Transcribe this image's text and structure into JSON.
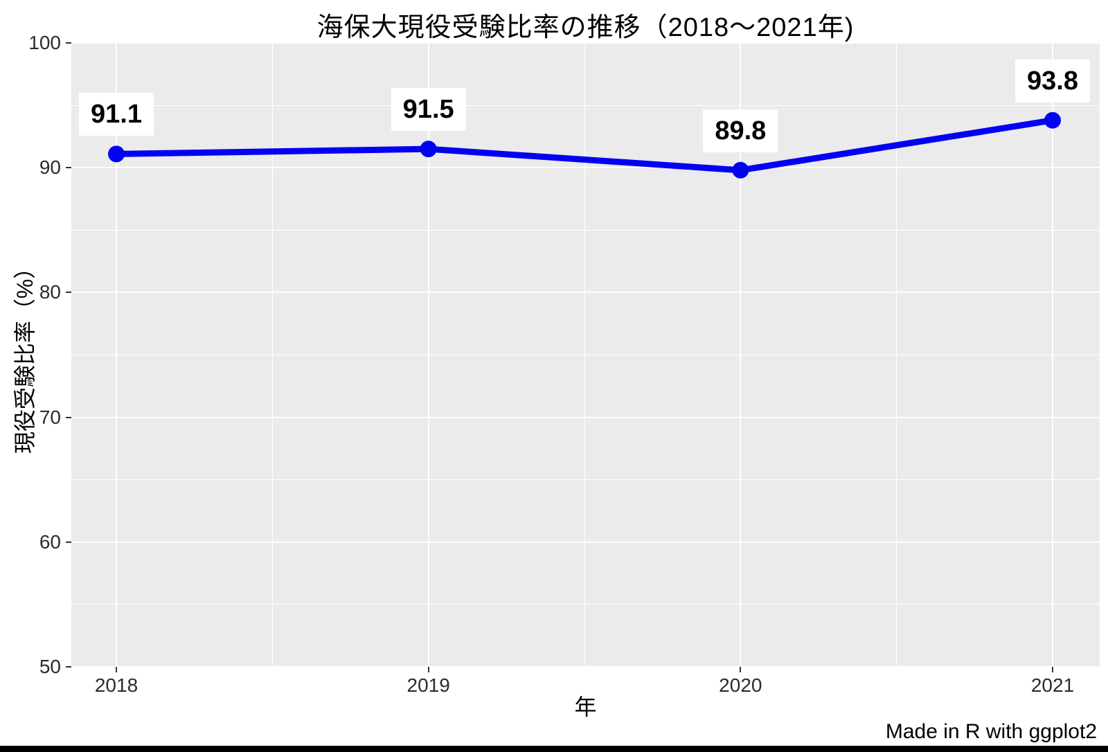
{
  "title": "海保大現役受験比率の推移（2018〜2021年)",
  "caption": "Made in R with ggplot2",
  "chart_data": {
    "type": "line",
    "title": "海保大現役受験比率の推移（2018〜2021年)",
    "xlabel": "年",
    "ylabel": "現役受験比率（%）",
    "x": [
      2018,
      2019,
      2020,
      2021
    ],
    "series": [
      {
        "name": "現役受験比率",
        "values": [
          91.1,
          91.5,
          89.8,
          93.8
        ]
      }
    ],
    "point_labels": [
      "91.1",
      "91.5",
      "89.8",
      "93.8"
    ],
    "xticks": [
      "2018",
      "2019",
      "2020",
      "2021"
    ],
    "yticks": [
      50,
      60,
      70,
      80,
      90,
      100
    ],
    "yticks_minor": [
      55,
      65,
      75,
      85,
      95
    ],
    "xticks_minor": [
      2018.5,
      2019.5,
      2020.5
    ],
    "ylim": [
      50,
      100
    ],
    "grid": "white major and minor gridlines on gray panel",
    "legend": "none",
    "caption": "Made in R with ggplot2",
    "colors": {
      "line": "#0202f2",
      "point": "#0202f2",
      "panel_bg": "#ebebeb",
      "grid": "#ffffff",
      "label_bg": "#ffffff",
      "label_text": "#000000",
      "axis_text": "#2b2b2b",
      "tick_mark": "#333333",
      "title_text": "#000000",
      "bottom_bar": "#000000"
    }
  }
}
